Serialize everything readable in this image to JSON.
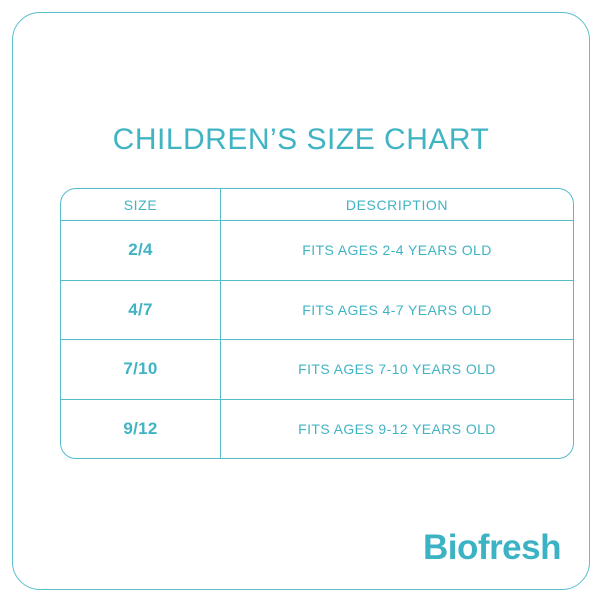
{
  "page": {
    "title": "CHILDREN’S SIZE CHART"
  },
  "table": {
    "headers": {
      "size": "SIZE",
      "description": "DESCRIPTION"
    },
    "rows": [
      {
        "size": "2/4",
        "description": "FITS AGES 2-4 YEARS OLD"
      },
      {
        "size": "4/7",
        "description": "FITS AGES 4-7 YEARS OLD"
      },
      {
        "size": "7/10",
        "description": "FITS AGES 7-10 YEARS OLD"
      },
      {
        "size": "9/12",
        "description": "FITS AGES 9-12 YEARS OLD"
      }
    ]
  },
  "brand": {
    "logo_text": "Biofresh"
  },
  "colors": {
    "accent_text": "#41b4c4",
    "border_line": "#55bcca",
    "logo": "#3cb3c4",
    "background": "#ffffff"
  },
  "chart_data": {
    "type": "table",
    "title": "CHILDREN’S SIZE CHART",
    "columns": [
      "SIZE",
      "DESCRIPTION"
    ],
    "rows": [
      [
        "2/4",
        "FITS AGES 2-4 YEARS OLD"
      ],
      [
        "4/7",
        "FITS AGES 4-7 YEARS OLD"
      ],
      [
        "7/10",
        "FITS AGES 7-10 YEARS OLD"
      ],
      [
        "9/12",
        "FITS AGES 9-12 YEARS OLD"
      ]
    ]
  }
}
